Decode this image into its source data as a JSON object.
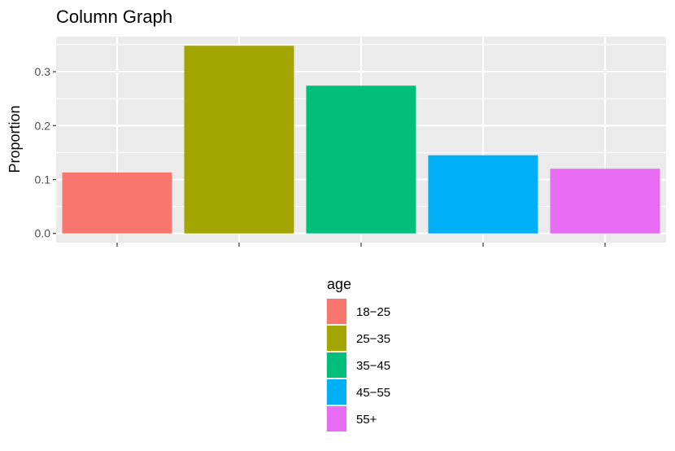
{
  "chart_data": {
    "type": "bar",
    "title": "Column Graph",
    "xlabel": "",
    "ylabel": "Proportion",
    "categories": [
      "18−25",
      "25−35",
      "35−45",
      "45−55",
      "55+"
    ],
    "values": [
      0.113,
      0.348,
      0.274,
      0.145,
      0.12
    ],
    "colors": [
      "#F8766D",
      "#A3A500",
      "#00BF7D",
      "#00B0F6",
      "#E76BF3"
    ],
    "ylim": [
      -0.017,
      0.365
    ],
    "yticks": [
      0.0,
      0.1,
      0.2,
      0.3
    ],
    "ytick_labels": [
      "0.0",
      "0.1",
      "0.2",
      "0.3"
    ],
    "grid": true,
    "legend": {
      "title": "age",
      "placement": "bottom",
      "entries": [
        "18−25",
        "25−35",
        "35−45",
        "45−55",
        "55+"
      ]
    }
  }
}
